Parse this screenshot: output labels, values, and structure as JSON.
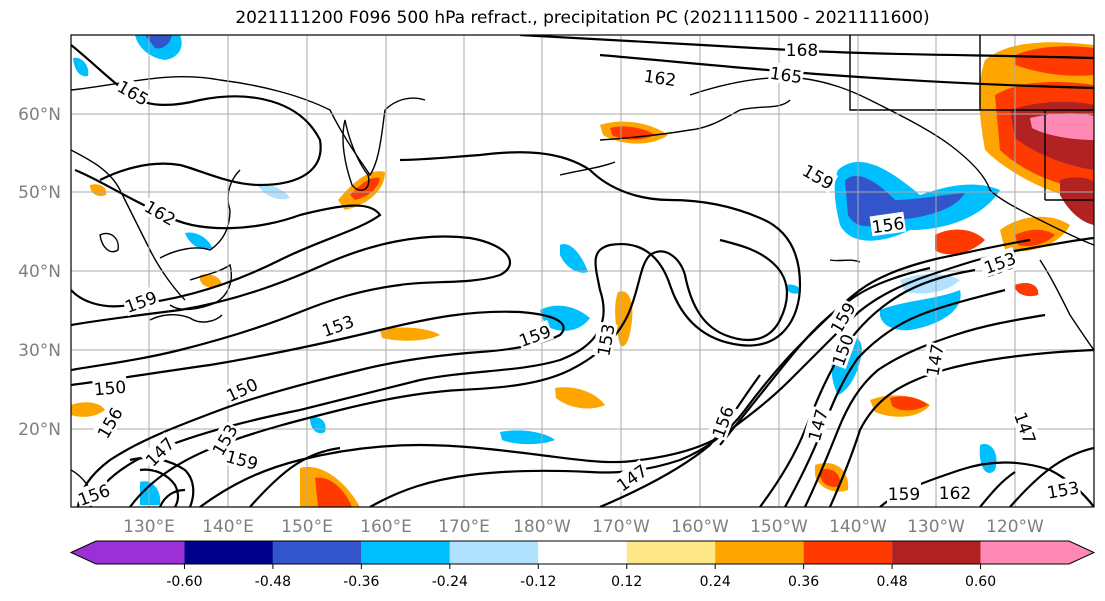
{
  "title": "2021111200 F096 500 hPa refract., precipitation PC (2021111500 - 2021111600)",
  "map": {
    "lat_labels": [
      "60°N",
      "50°N",
      "40°N",
      "30°N",
      "20°N"
    ],
    "lon_labels": [
      "130°E",
      "140°E",
      "150°E",
      "160°E",
      "170°E",
      "180°W",
      "170°W",
      "160°W",
      "150°W",
      "140°W",
      "130°W",
      "120°W"
    ],
    "contour_labels": [
      {
        "text": "168"
      },
      {
        "text": "165"
      },
      {
        "text": "162"
      },
      {
        "text": "165"
      },
      {
        "text": "159"
      },
      {
        "text": "156"
      },
      {
        "text": "153"
      },
      {
        "text": "162"
      },
      {
        "text": "159"
      },
      {
        "text": "153"
      },
      {
        "text": "159"
      },
      {
        "text": "153"
      },
      {
        "text": "150"
      },
      {
        "text": "150"
      },
      {
        "text": "156"
      },
      {
        "text": "147"
      },
      {
        "text": "153"
      },
      {
        "text": "159"
      },
      {
        "text": "156"
      },
      {
        "text": "147"
      },
      {
        "text": "159"
      },
      {
        "text": "150"
      },
      {
        "text": "147"
      },
      {
        "text": "147"
      },
      {
        "text": "153"
      },
      {
        "text": "159"
      },
      {
        "text": "162"
      },
      {
        "text": "153"
      },
      {
        "text": "147"
      },
      {
        "text": "156"
      }
    ]
  },
  "colorbar": {
    "colors": [
      "#9b30d6",
      "#00008b",
      "#3355cc",
      "#00bfff",
      "#b0e2ff",
      "#ffffff",
      "#ffe888",
      "#ffa500",
      "#ff3a00",
      "#b22222",
      "#ff88b4"
    ],
    "labels": [
      "-0.60",
      "-0.48",
      "-0.36",
      "-0.24",
      "-0.12",
      "0.12",
      "0.24",
      "0.36",
      "0.48",
      "0.60"
    ]
  }
}
